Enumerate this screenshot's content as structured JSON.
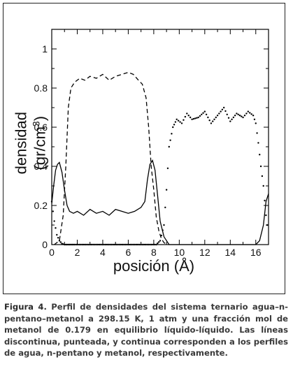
{
  "figure": {
    "caption_lead": "Figura 4.",
    "caption_text": "Perfil de densidades del sistema ternario agua–n-pentano–metanol a 298.15 K, 1 atm y una fracción mol de metanol de 0.179 en equilibrio líquido-líquido. Las líneas discontinua, punteada, y continua corresponden a los perfiles de agua, n-pentano y metanol, respectivamente."
  },
  "chart_data": {
    "type": "line",
    "xlabel": "posición (Å)",
    "ylabel": "densidad (gr/cm³)",
    "ylabel_main": "densidad (gr/cm",
    "ylabel_sup": "3",
    "ylabel_tail": ")",
    "xlim": [
      0,
      17
    ],
    "ylim": [
      0,
      1.1
    ],
    "x_ticks": [
      "0",
      "2",
      "4",
      "6",
      "8",
      "10",
      "12",
      "14",
      "16"
    ],
    "y_ticks": [
      "0",
      "0.2",
      "0.4",
      "0.6",
      "0.8",
      "1"
    ],
    "grid": false,
    "series": [
      {
        "style": "dashed",
        "x": [
          0.2,
          0.6,
          0.9,
          1.1,
          1.3,
          1.5,
          1.8,
          2.2,
          2.6,
          3.0,
          3.5,
          4.0,
          4.5,
          5.0,
          5.5,
          6.0,
          6.4,
          6.8,
          7.1,
          7.4,
          7.6,
          7.8,
          8.0,
          8.2,
          8.4,
          8.6,
          8.8,
          9.0
        ],
        "y": [
          0.0,
          0.02,
          0.15,
          0.4,
          0.7,
          0.8,
          0.83,
          0.85,
          0.84,
          0.86,
          0.85,
          0.87,
          0.84,
          0.86,
          0.87,
          0.88,
          0.87,
          0.84,
          0.82,
          0.75,
          0.6,
          0.4,
          0.28,
          0.14,
          0.07,
          0.03,
          0.01,
          0.0
        ]
      },
      {
        "style": "dotted",
        "x": [
          0.0,
          0.2,
          0.4,
          0.6,
          0.8,
          1.0,
          1.2,
          1.5,
          1.8,
          8.2,
          8.5,
          8.8,
          9.0,
          9.2,
          9.5,
          9.8,
          10.2,
          10.6,
          11.0,
          11.5,
          12.0,
          12.5,
          13.0,
          13.5,
          14.0,
          14.5,
          15.0,
          15.4,
          15.8,
          16.0,
          16.2,
          16.4,
          16.6,
          16.8,
          17.0
        ],
        "y": [
          0.22,
          0.12,
          0.05,
          0.02,
          0.005,
          0.0,
          0.0,
          0.0,
          0.0,
          0.0,
          0.02,
          0.1,
          0.28,
          0.5,
          0.6,
          0.64,
          0.62,
          0.67,
          0.64,
          0.65,
          0.68,
          0.62,
          0.66,
          0.7,
          0.63,
          0.67,
          0.65,
          0.68,
          0.66,
          0.62,
          0.52,
          0.4,
          0.3,
          0.15,
          0.05
        ]
      },
      {
        "style": "solid",
        "x": [
          0.0,
          0.15,
          0.3,
          0.45,
          0.6,
          0.8,
          1.0,
          1.2,
          1.4,
          1.7,
          2.0,
          2.5,
          3.0,
          3.5,
          4.0,
          4.5,
          5.0,
          5.5,
          6.0,
          6.5,
          7.0,
          7.3,
          7.5,
          7.7,
          7.9,
          8.1,
          8.3,
          8.5,
          8.8,
          9.2,
          10.0,
          11.0,
          13.0,
          15.0,
          16.0,
          16.3,
          16.6,
          16.8,
          17.0
        ],
        "y": [
          0.21,
          0.3,
          0.38,
          0.41,
          0.42,
          0.37,
          0.28,
          0.2,
          0.17,
          0.16,
          0.17,
          0.15,
          0.18,
          0.16,
          0.17,
          0.15,
          0.18,
          0.17,
          0.16,
          0.17,
          0.19,
          0.22,
          0.33,
          0.41,
          0.43,
          0.38,
          0.25,
          0.12,
          0.04,
          0.0,
          0.0,
          0.0,
          0.0,
          0.0,
          0.0,
          0.02,
          0.1,
          0.22,
          0.26
        ]
      }
    ]
  }
}
